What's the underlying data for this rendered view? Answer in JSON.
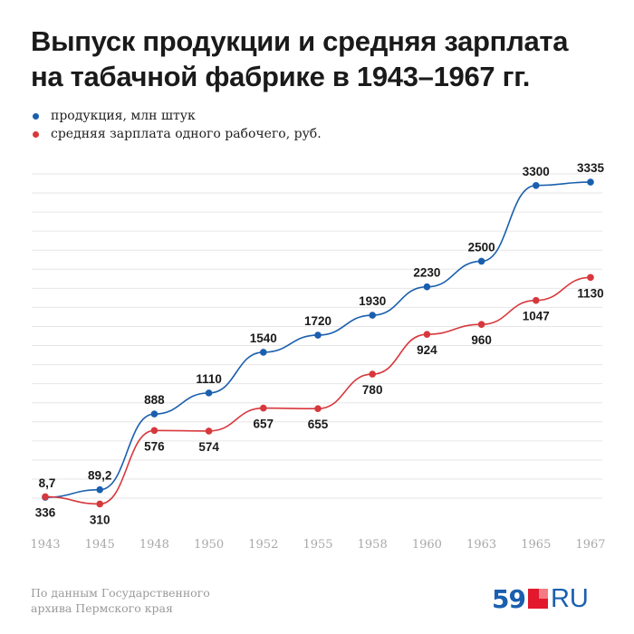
{
  "title_lines": [
    "Выпуск продукции и средняя зарплата",
    "на табачной фабрике в 1943–1967 гг."
  ],
  "source_lines": [
    "По данным Государственного",
    "архива Пермского края"
  ],
  "logo": {
    "number": "59",
    "suffix": "RU"
  },
  "chart_data": {
    "type": "line",
    "categories": [
      "1943",
      "1945",
      "1948",
      "1950",
      "1952",
      "1955",
      "1958",
      "1960",
      "1963",
      "1965",
      "1967"
    ],
    "grid": true,
    "legend_position": "top-left",
    "series": [
      {
        "name": "продукция, млн штук",
        "color": "#1a5fae",
        "values": [
          8.7,
          89.2,
          888,
          1110,
          1540,
          1720,
          1930,
          2230,
          2500,
          3300,
          3335
        ],
        "labels": [
          "8,7",
          "89,2",
          "888",
          "1110",
          "1540",
          "1720",
          "1930",
          "2230",
          "2500",
          "3300",
          "3335"
        ],
        "label_position": "above",
        "ylim": [
          0,
          3422
        ]
      },
      {
        "name": "средняя зарплата одного рабочего, руб.",
        "color": "#d7383c",
        "values": [
          336,
          310,
          576,
          574,
          657,
          655,
          780,
          924,
          960,
          1047,
          1130
        ],
        "labels": [
          "336",
          "310",
          "576",
          "574",
          "657",
          "655",
          "780",
          "924",
          "960",
          "1047",
          "1130"
        ],
        "label_position": "below",
        "ylim": [
          331,
          1505
        ]
      }
    ]
  }
}
